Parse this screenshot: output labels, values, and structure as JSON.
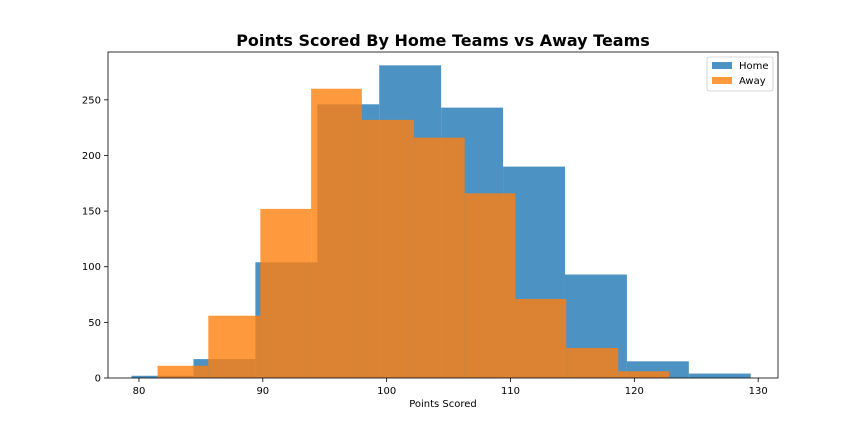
{
  "chart_data": {
    "type": "bar",
    "title": "Points Scored By Home Teams vs Away Teams",
    "xlabel": "Points Scored",
    "ylabel": "",
    "xlim": [
      77.5,
      131.6
    ],
    "ylim": [
      0,
      293
    ],
    "xticks": [
      80,
      90,
      100,
      110,
      120,
      130
    ],
    "yticks": [
      0,
      50,
      100,
      150,
      200,
      250
    ],
    "grid": false,
    "legend_position": "top-right",
    "series": [
      {
        "name": "Home",
        "color": "#1f77b4",
        "opacity": 0.8,
        "bins": [
          {
            "x0": 79.4,
            "x1": 84.4,
            "value": 2
          },
          {
            "x0": 84.4,
            "x1": 89.4,
            "value": 17
          },
          {
            "x0": 89.4,
            "x1": 94.4,
            "value": 104
          },
          {
            "x0": 94.4,
            "x1": 99.4,
            "value": 246
          },
          {
            "x0": 99.4,
            "x1": 104.4,
            "value": 281
          },
          {
            "x0": 104.4,
            "x1": 109.4,
            "value": 243
          },
          {
            "x0": 109.4,
            "x1": 114.4,
            "value": 190
          },
          {
            "x0": 114.4,
            "x1": 119.4,
            "value": 93
          },
          {
            "x0": 119.4,
            "x1": 124.4,
            "value": 15
          },
          {
            "x0": 124.4,
            "x1": 129.4,
            "value": 4
          }
        ]
      },
      {
        "name": "Away",
        "color": "#ff7f0e",
        "opacity": 0.8,
        "bins": [
          {
            "x0": 81.5,
            "x1": 85.6,
            "value": 11
          },
          {
            "x0": 85.6,
            "x1": 89.8,
            "value": 56
          },
          {
            "x0": 89.8,
            "x1": 93.9,
            "value": 152
          },
          {
            "x0": 93.9,
            "x1": 98.0,
            "value": 260
          },
          {
            "x0": 98.0,
            "x1": 102.2,
            "value": 232
          },
          {
            "x0": 102.2,
            "x1": 106.3,
            "value": 216
          },
          {
            "x0": 106.3,
            "x1": 110.4,
            "value": 166
          },
          {
            "x0": 110.4,
            "x1": 114.5,
            "value": 71
          },
          {
            "x0": 114.5,
            "x1": 118.7,
            "value": 27
          },
          {
            "x0": 118.7,
            "x1": 122.8,
            "value": 6
          }
        ]
      }
    ]
  }
}
